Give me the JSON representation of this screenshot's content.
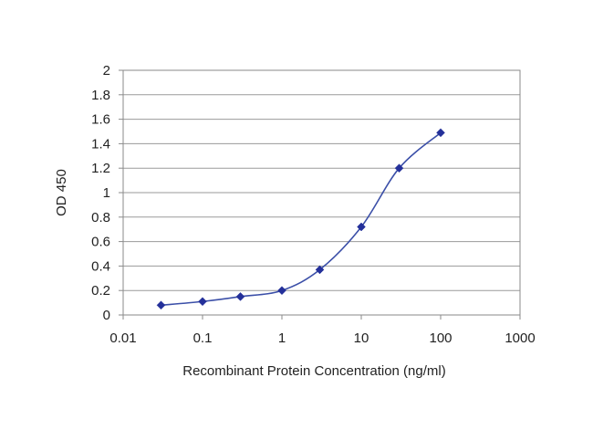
{
  "chart_data": {
    "type": "line",
    "title": "",
    "xlabel": "Recombinant Protein Concentration (ng/ml)",
    "ylabel": "OD 450",
    "x_scale": "log",
    "xlim": [
      0.01,
      1000
    ],
    "ylim": [
      0,
      2
    ],
    "x_ticks": [
      0.01,
      0.1,
      1,
      10,
      100,
      1000
    ],
    "x_tick_labels": [
      "0.01",
      "0.1",
      "1",
      "10",
      "100",
      "1000"
    ],
    "y_ticks": [
      0,
      0.2,
      0.4,
      0.6,
      0.8,
      1,
      1.2,
      1.4,
      1.6,
      1.8,
      2
    ],
    "y_tick_labels": [
      "0",
      "0.2",
      "0.4",
      "0.6",
      "0.8",
      "1",
      "1.2",
      "1.4",
      "1.6",
      "1.8",
      "2"
    ],
    "grid": "horizontal",
    "legend": "none",
    "series": [
      {
        "x": [
          0.03,
          0.1,
          0.3,
          1,
          3,
          10,
          30,
          100
        ],
        "y": [
          0.08,
          0.11,
          0.15,
          0.2,
          0.37,
          0.72,
          1.2,
          1.49
        ],
        "color": "#3b4fa8",
        "marker": "diamond",
        "marker_color": "#24309a"
      }
    ],
    "colors": {
      "plot_border": "#8a8a8a",
      "grid": "#9a9a9a"
    }
  }
}
